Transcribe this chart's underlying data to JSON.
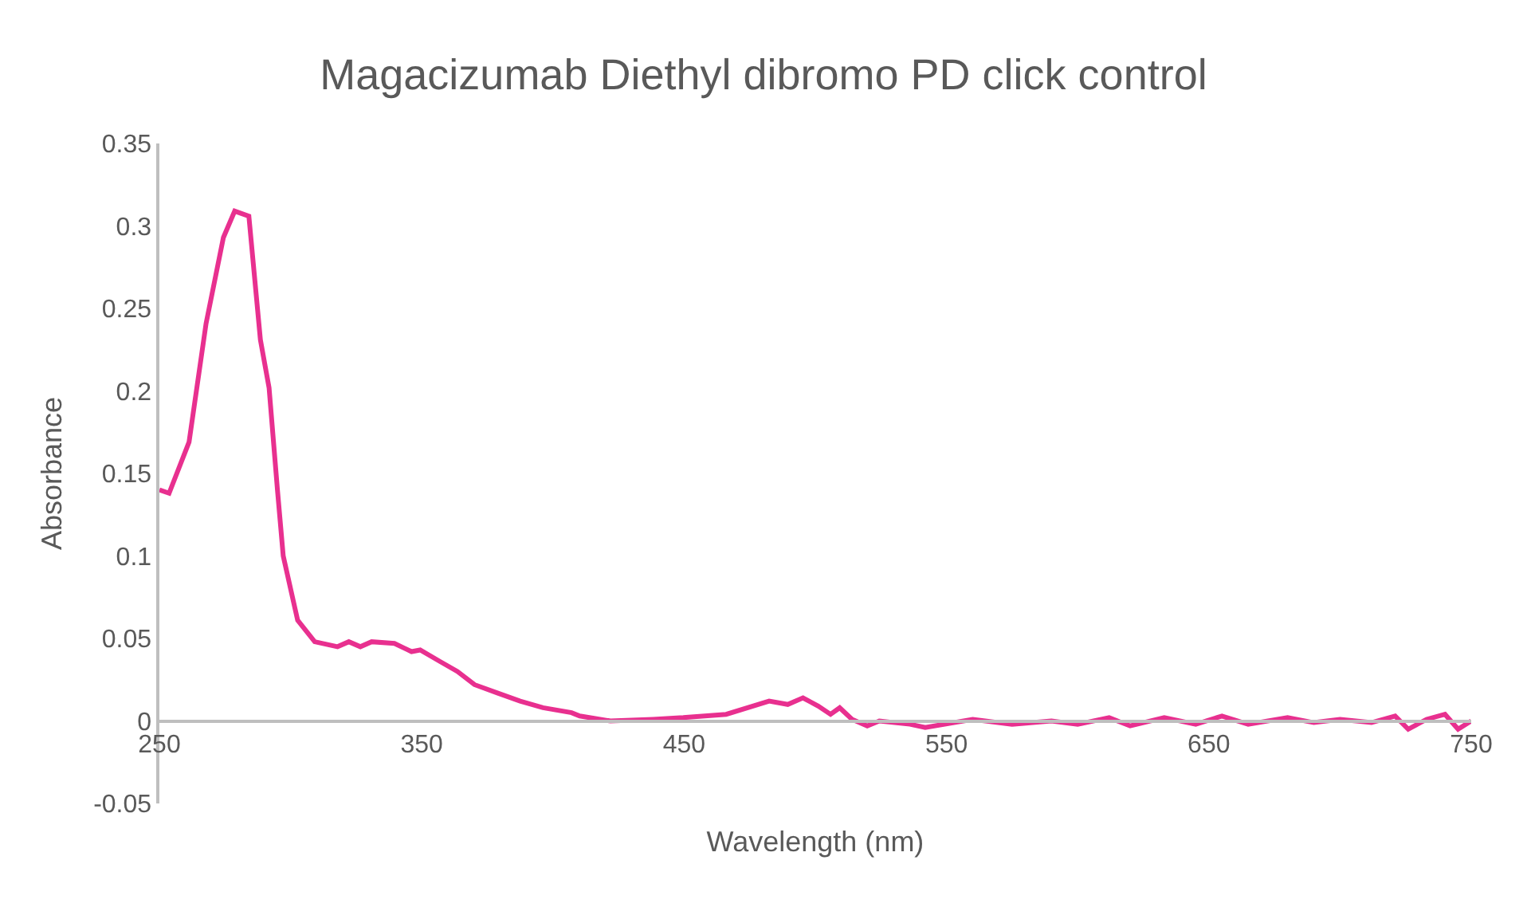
{
  "chart_data": {
    "type": "line",
    "title": "Magacizumab Diethyl dibromo PD click control",
    "xlabel": "Wavelength (nm)",
    "ylabel": "Absorbance",
    "xlim": [
      250,
      750
    ],
    "xticks": [
      250,
      350,
      450,
      550,
      650,
      750
    ],
    "ylim": [
      -0.05,
      0.35
    ],
    "yticks": [
      -0.05,
      0,
      0.05,
      0.1,
      0.15,
      0.2,
      0.25,
      0.3,
      0.35
    ],
    "grid": false,
    "marker": "none",
    "line_style": "solid",
    "series": [
      {
        "color": "#e8308f",
        "x": [
          250,
          253.7,
          261.3,
          267.8,
          274.4,
          278.7,
          284.1,
          288.5,
          291.8,
          295,
          297.2,
          302.7,
          309.2,
          317.9,
          322.2,
          326.6,
          330.9,
          339.6,
          346.1,
          349.4,
          357,
          363.6,
          370.1,
          378.8,
          387.5,
          396.2,
          407.1,
          410.2,
          421.9,
          438.2,
          449.7,
          466,
          482.4,
          489.5,
          495.3,
          501.1,
          505.8,
          509.3,
          514,
          519.8,
          524.4,
          536.1,
          541.9,
          560,
          575,
          590,
          600,
          612,
          620,
          633,
          645,
          655,
          665,
          680,
          690,
          700,
          712,
          721,
          726,
          733,
          740,
          745,
          750
        ],
        "values": [
          0.14,
          0.138,
          0.169,
          0.241,
          0.293,
          0.309,
          0.306,
          0.231,
          0.202,
          0.14,
          0.1,
          0.061,
          0.048,
          0.045,
          0.048,
          0.045,
          0.048,
          0.047,
          0.042,
          0.043,
          0.036,
          0.03,
          0.022,
          0.017,
          0.012,
          0.008,
          0.005,
          0.003,
          0.0,
          0.001,
          0.002,
          0.004,
          0.012,
          0.01,
          0.014,
          0.009,
          0.004,
          0.008,
          0.001,
          -0.003,
          0.0,
          -0.002,
          -0.004,
          0.001,
          -0.002,
          0.0,
          -0.002,
          0.002,
          -0.003,
          0.002,
          -0.002,
          0.003,
          -0.002,
          0.002,
          -0.001,
          0.001,
          -0.001,
          0.003,
          -0.005,
          0.001,
          0.004,
          -0.005,
          0.0
        ]
      }
    ]
  }
}
